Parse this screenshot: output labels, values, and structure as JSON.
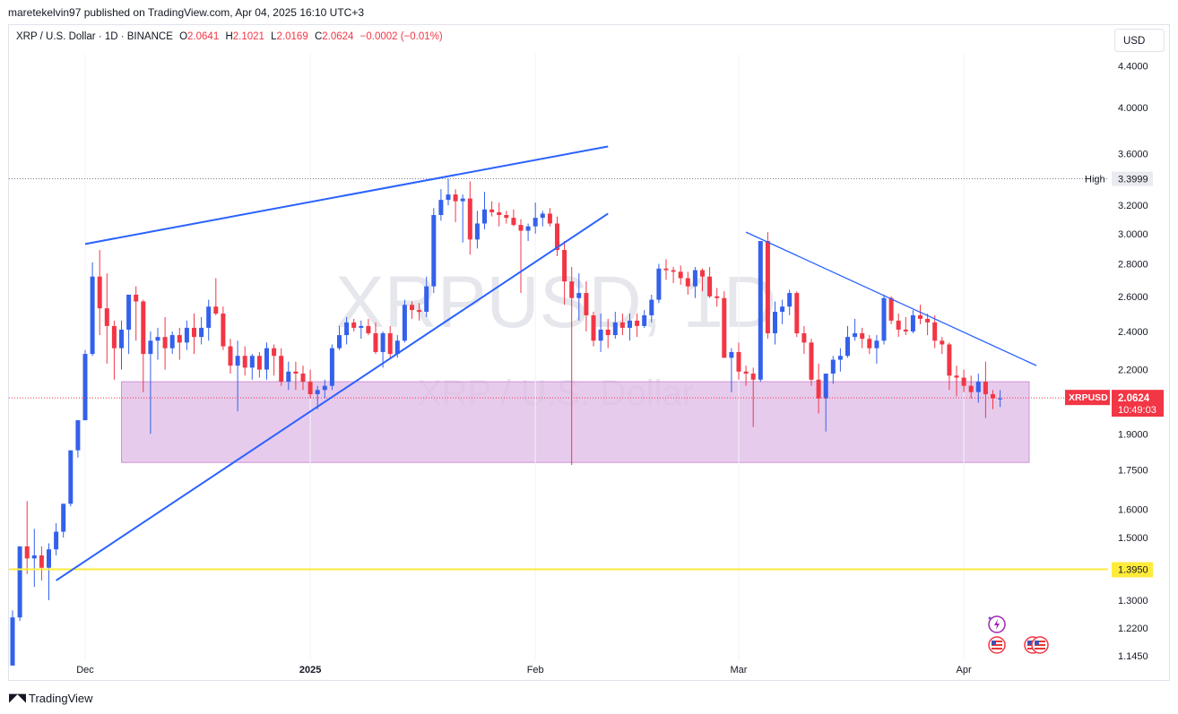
{
  "header": {
    "publisher_line": "maretekelvin97 published on TradingView.com, Apr 04, 2025 16:10 UTC+3"
  },
  "legend": {
    "symbol": "XRP / U.S. Dollar · 1D · BINANCE",
    "o_label": "O",
    "o_value": "2.0641",
    "h_label": "H",
    "h_value": "2.1021",
    "l_label": "L",
    "l_value": "2.0169",
    "c_label": "C",
    "c_value": "2.0624",
    "change": "−0.0002 (−0.01%)"
  },
  "currency_button": "USD",
  "watermark": {
    "line1": "XRPUSD, 1D",
    "line2": "XRP / U.S. Dollar"
  },
  "footer": {
    "brand": "TradingView"
  },
  "colors": {
    "up": "#3461eb",
    "down": "#f23645",
    "trendline": "#2962ff",
    "support_zone": "#e1bee7",
    "support_line": "#ffeb3b",
    "price_label": "#f23645"
  },
  "icons": [
    "lightning-icon",
    "us-flag-icon",
    "us-flag-icon",
    "us-flag-icon"
  ],
  "chart_data": {
    "type": "candlestick",
    "symbol": "XRPUSD",
    "timeframe": "1D",
    "exchange": "BINANCE",
    "y_scale": "log",
    "y_ticks": [
      "4.4000",
      "4.0000",
      "3.6000",
      "3.2000",
      "3.0000",
      "2.8000",
      "2.6000",
      "2.4000",
      "2.2000",
      "1.9000",
      "1.7500",
      "1.6000",
      "1.5000",
      "1.3000",
      "1.2200",
      "1.1450"
    ],
    "y_tick_values": [
      4.4,
      4.0,
      3.6,
      3.2,
      3.0,
      2.8,
      2.6,
      2.4,
      2.2,
      1.9,
      1.75,
      1.6,
      1.5,
      1.3,
      1.22,
      1.145
    ],
    "x_ticks": [
      {
        "label": "Dec",
        "day": 10
      },
      {
        "label": "2025",
        "day": 41
      },
      {
        "label": "Feb",
        "day": 72
      },
      {
        "label": "Mar",
        "day": 100
      },
      {
        "label": "Apr",
        "day": 131
      }
    ],
    "markers": {
      "high": {
        "label": "High",
        "value": "3.3999"
      },
      "last": {
        "label": "XRPUSD",
        "value": "2.0624",
        "countdown": "10:49:03"
      },
      "support_level": {
        "value": "1.3950"
      }
    },
    "support_zone": {
      "top": 2.14,
      "bottom": 1.78,
      "start_day": 15,
      "end_day": 140
    },
    "trendlines": [
      {
        "from": {
          "day": 10,
          "price": 2.93
        },
        "to": {
          "day": 82,
          "price": 3.66
        }
      },
      {
        "from": {
          "day": 6,
          "price": 1.36
        },
        "to": {
          "day": 82,
          "price": 3.14
        }
      },
      {
        "from": {
          "day": 101,
          "price": 3.01
        },
        "to": {
          "day": 141,
          "price": 2.22
        }
      }
    ],
    "ohlc": [
      [
        1.12,
        1.27,
        1.12,
        1.25
      ],
      [
        1.25,
        1.47,
        1.24,
        1.47
      ],
      [
        1.47,
        1.63,
        1.38,
        1.43
      ],
      [
        1.43,
        1.53,
        1.34,
        1.44
      ],
      [
        1.44,
        1.47,
        1.36,
        1.4
      ],
      [
        1.4,
        1.48,
        1.3,
        1.46
      ],
      [
        1.46,
        1.55,
        1.44,
        1.52
      ],
      [
        1.52,
        1.62,
        1.5,
        1.62
      ],
      [
        1.62,
        1.81,
        1.61,
        1.83
      ],
      [
        1.83,
        1.96,
        1.8,
        1.96
      ],
      [
        1.96,
        2.3,
        1.96,
        2.28
      ],
      [
        2.28,
        2.81,
        2.27,
        2.72
      ],
      [
        2.72,
        2.89,
        2.38,
        2.53
      ],
      [
        2.53,
        2.74,
        2.23,
        2.43
      ],
      [
        2.43,
        2.46,
        2.15,
        2.31
      ],
      [
        2.31,
        2.46,
        2.2,
        2.41
      ],
      [
        2.41,
        2.61,
        2.28,
        2.61
      ],
      [
        2.61,
        2.66,
        2.35,
        2.57
      ],
      [
        2.57,
        2.58,
        2.09,
        2.28
      ],
      [
        2.28,
        2.4,
        1.9,
        2.35
      ],
      [
        2.35,
        2.42,
        2.25,
        2.37
      ],
      [
        2.37,
        2.48,
        2.2,
        2.31
      ],
      [
        2.31,
        2.4,
        2.28,
        2.38
      ],
      [
        2.38,
        2.42,
        2.25,
        2.34
      ],
      [
        2.34,
        2.46,
        2.3,
        2.42
      ],
      [
        2.42,
        2.5,
        2.28,
        2.37
      ],
      [
        2.37,
        2.48,
        2.33,
        2.42
      ],
      [
        2.42,
        2.58,
        2.35,
        2.54
      ],
      [
        2.54,
        2.71,
        2.49,
        2.5
      ],
      [
        2.5,
        2.54,
        2.3,
        2.32
      ],
      [
        2.32,
        2.36,
        2.18,
        2.22
      ],
      [
        2.22,
        2.35,
        2.0,
        2.27
      ],
      [
        2.27,
        2.32,
        2.17,
        2.21
      ],
      [
        2.21,
        2.28,
        2.15,
        2.27
      ],
      [
        2.27,
        2.29,
        2.16,
        2.2
      ],
      [
        2.2,
        2.34,
        2.15,
        2.31
      ],
      [
        2.31,
        2.33,
        2.17,
        2.27
      ],
      [
        2.27,
        2.31,
        2.12,
        2.14
      ],
      [
        2.14,
        2.24,
        2.1,
        2.19
      ],
      [
        2.19,
        2.24,
        2.1,
        2.18
      ],
      [
        2.18,
        2.22,
        2.1,
        2.14
      ],
      [
        2.14,
        2.2,
        2.06,
        2.08
      ],
      [
        2.08,
        2.12,
        2.01,
        2.1
      ],
      [
        2.1,
        2.15,
        2.06,
        2.12
      ],
      [
        2.12,
        2.33,
        2.1,
        2.31
      ],
      [
        2.31,
        2.43,
        2.3,
        2.38
      ],
      [
        2.38,
        2.48,
        2.33,
        2.45
      ],
      [
        2.45,
        2.47,
        2.4,
        2.42
      ],
      [
        2.42,
        2.46,
        2.36,
        2.43
      ],
      [
        2.43,
        2.47,
        2.38,
        2.39
      ],
      [
        2.39,
        2.45,
        2.28,
        2.29
      ],
      [
        2.29,
        2.4,
        2.21,
        2.39
      ],
      [
        2.39,
        2.43,
        2.26,
        2.28
      ],
      [
        2.28,
        2.38,
        2.26,
        2.35
      ],
      [
        2.35,
        2.58,
        2.34,
        2.55
      ],
      [
        2.55,
        2.57,
        2.47,
        2.52
      ],
      [
        2.52,
        2.56,
        2.46,
        2.51
      ],
      [
        2.51,
        2.72,
        2.48,
        2.66
      ],
      [
        2.66,
        3.18,
        2.62,
        3.13
      ],
      [
        3.13,
        3.32,
        3.09,
        3.24
      ],
      [
        3.24,
        3.4,
        3.2,
        3.28
      ],
      [
        3.28,
        3.32,
        3.08,
        3.23
      ],
      [
        3.23,
        3.28,
        2.94,
        3.25
      ],
      [
        3.25,
        3.38,
        2.86,
        2.96
      ],
      [
        2.96,
        3.16,
        2.9,
        3.07
      ],
      [
        3.07,
        3.3,
        3.03,
        3.17
      ],
      [
        3.17,
        3.23,
        3.12,
        3.15
      ],
      [
        3.15,
        3.22,
        3.05,
        3.13
      ],
      [
        3.13,
        3.16,
        3.07,
        3.11
      ],
      [
        3.11,
        3.17,
        3.05,
        3.06
      ],
      [
        3.06,
        3.1,
        2.62,
        3.02
      ],
      [
        3.02,
        3.07,
        2.95,
        3.05
      ],
      [
        3.05,
        3.22,
        3.0,
        3.11
      ],
      [
        3.11,
        3.16,
        3.05,
        3.14
      ],
      [
        3.14,
        3.18,
        3.05,
        3.07
      ],
      [
        3.07,
        3.12,
        2.85,
        2.89
      ],
      [
        2.89,
        2.95,
        2.55,
        2.69
      ],
      [
        2.69,
        2.78,
        1.77,
        2.59
      ],
      [
        2.59,
        2.74,
        2.46,
        2.62
      ],
      [
        2.62,
        2.69,
        2.4,
        2.49
      ],
      [
        2.49,
        2.51,
        2.32,
        2.35
      ],
      [
        2.35,
        2.5,
        2.29,
        2.41
      ],
      [
        2.41,
        2.47,
        2.31,
        2.38
      ],
      [
        2.38,
        2.51,
        2.36,
        2.45
      ],
      [
        2.45,
        2.5,
        2.38,
        2.42
      ],
      [
        2.42,
        2.5,
        2.35,
        2.46
      ],
      [
        2.46,
        2.5,
        2.37,
        2.43
      ],
      [
        2.43,
        2.52,
        2.42,
        2.49
      ],
      [
        2.49,
        2.61,
        2.45,
        2.58
      ],
      [
        2.58,
        2.8,
        2.56,
        2.77
      ],
      [
        2.77,
        2.83,
        2.7,
        2.76
      ],
      [
        2.76,
        2.78,
        2.68,
        2.75
      ],
      [
        2.75,
        2.79,
        2.67,
        2.71
      ],
      [
        2.71,
        2.75,
        2.61,
        2.66
      ],
      [
        2.66,
        2.78,
        2.59,
        2.76
      ],
      [
        2.76,
        2.77,
        2.63,
        2.72
      ],
      [
        2.72,
        2.78,
        2.59,
        2.6
      ],
      [
        2.6,
        2.65,
        2.54,
        2.59
      ],
      [
        2.59,
        2.63,
        2.28,
        2.26
      ],
      [
        2.26,
        2.31,
        2.09,
        2.29
      ],
      [
        2.29,
        2.34,
        2.15,
        2.19
      ],
      [
        2.19,
        2.22,
        2.12,
        2.18
      ],
      [
        2.18,
        2.21,
        1.93,
        2.15
      ],
      [
        2.15,
        2.95,
        2.14,
        2.95
      ],
      [
        2.95,
        3.01,
        2.36,
        2.39
      ],
      [
        2.39,
        2.57,
        2.33,
        2.51
      ],
      [
        2.51,
        2.58,
        2.44,
        2.54
      ],
      [
        2.54,
        2.64,
        2.49,
        2.62
      ],
      [
        2.62,
        2.63,
        2.37,
        2.39
      ],
      [
        2.39,
        2.43,
        2.28,
        2.34
      ],
      [
        2.34,
        2.36,
        2.12,
        2.15
      ],
      [
        2.15,
        2.23,
        1.99,
        2.06
      ],
      [
        2.06,
        2.18,
        1.91,
        2.18
      ],
      [
        2.18,
        2.27,
        2.13,
        2.25
      ],
      [
        2.25,
        2.31,
        2.19,
        2.27
      ],
      [
        2.27,
        2.43,
        2.26,
        2.37
      ],
      [
        2.37,
        2.47,
        2.35,
        2.39
      ],
      [
        2.39,
        2.42,
        2.31,
        2.36
      ],
      [
        2.36,
        2.38,
        2.28,
        2.31
      ],
      [
        2.31,
        2.38,
        2.23,
        2.35
      ],
      [
        2.35,
        2.61,
        2.33,
        2.59
      ],
      [
        2.59,
        2.6,
        2.44,
        2.46
      ],
      [
        2.46,
        2.5,
        2.37,
        2.41
      ],
      [
        2.41,
        2.48,
        2.38,
        2.4
      ],
      [
        2.4,
        2.52,
        2.39,
        2.49
      ],
      [
        2.49,
        2.55,
        2.44,
        2.47
      ],
      [
        2.47,
        2.5,
        2.38,
        2.45
      ],
      [
        2.45,
        2.49,
        2.31,
        2.35
      ],
      [
        2.35,
        2.37,
        2.28,
        2.33
      ],
      [
        2.33,
        2.34,
        2.1,
        2.17
      ],
      [
        2.17,
        2.22,
        2.07,
        2.16
      ],
      [
        2.16,
        2.2,
        2.09,
        2.12
      ],
      [
        2.12,
        2.17,
        2.06,
        2.09
      ],
      [
        2.09,
        2.18,
        2.04,
        2.14
      ],
      [
        2.14,
        2.24,
        1.97,
        2.08
      ],
      [
        2.08,
        2.1,
        2.01,
        2.06
      ],
      [
        2.06,
        2.1,
        2.02,
        2.06
      ]
    ]
  }
}
